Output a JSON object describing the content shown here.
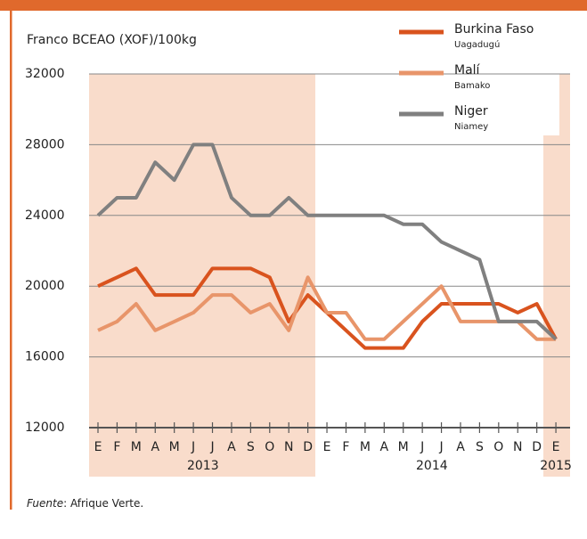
{
  "chart_data": {
    "type": "line",
    "y_axis_label": "Franco BCEAO (XOF)/100kg",
    "categories": [
      "E",
      "F",
      "M",
      "A",
      "M",
      "J",
      "J",
      "A",
      "S",
      "O",
      "N",
      "D",
      "E",
      "F",
      "M",
      "A",
      "M",
      "J",
      "J",
      "A",
      "S",
      "O",
      "N",
      "D",
      "E"
    ],
    "year_labels": [
      "2013",
      "2014",
      "2015"
    ],
    "series": [
      {
        "name": "Burkina Faso",
        "sublabel": "Uagadugú",
        "color": "#d9531e",
        "values": [
          20000,
          20500,
          21000,
          19500,
          19500,
          19500,
          21000,
          21000,
          21000,
          20500,
          18000,
          19500,
          18500,
          17500,
          16500,
          16500,
          16500,
          18000,
          19000,
          19000,
          19000,
          19000,
          18500,
          19000,
          17000
        ]
      },
      {
        "name": "Malí",
        "sublabel": "Bamako",
        "color": "#e8956a",
        "values": [
          17500,
          18000,
          19000,
          17500,
          18000,
          18500,
          19500,
          19500,
          18500,
          19000,
          17500,
          20500,
          18500,
          18500,
          17000,
          17000,
          18000,
          19000,
          20000,
          18000,
          18000,
          18000,
          18000,
          17000,
          17000
        ]
      },
      {
        "name": "Niger",
        "sublabel": "Niamey",
        "color": "#808080",
        "values": [
          24000,
          25000,
          25000,
          27000,
          26000,
          28000,
          28000,
          25000,
          24000,
          24000,
          25000,
          24000,
          24000,
          24000,
          24000,
          24000,
          23500,
          23500,
          22500,
          22000,
          21500,
          18000,
          18000,
          18000,
          17000
        ]
      }
    ],
    "ylim": [
      12000,
      32000
    ],
    "yticks": [
      12000,
      16000,
      20000,
      24000,
      28000,
      32000
    ],
    "grid": true,
    "source_label": "Fuente",
    "source_text": ": Afrique Verte."
  }
}
